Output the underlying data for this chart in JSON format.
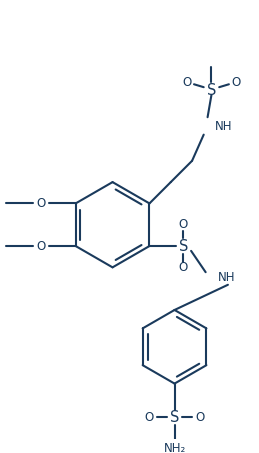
{
  "bg_color": "#ffffff",
  "line_color": "#1a3a5c",
  "line_width": 1.5,
  "font_size": 8.5,
  "figsize": [
    2.59,
    4.53
  ],
  "dpi": 100,
  "xlim": [
    0,
    259
  ],
  "ylim": [
    0,
    453
  ]
}
